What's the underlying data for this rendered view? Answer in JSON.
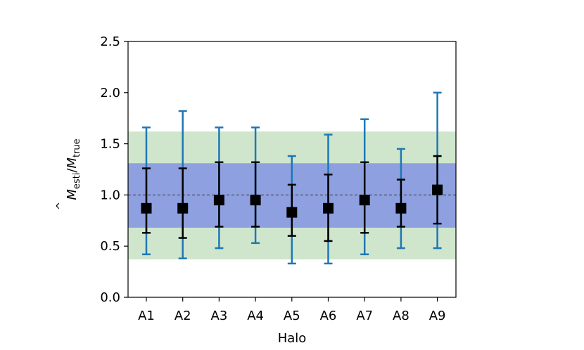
{
  "chart_data": {
    "type": "errorbar",
    "xlabel": "Halo",
    "ylabel_main": "M",
    "ylabel_sub_num": "esti",
    "ylabel_sep": "/",
    "ylabel_sub_den": "true",
    "ylim": [
      0.0,
      2.5
    ],
    "yticks": [
      "0.0",
      "0.5",
      "1.0",
      "1.5",
      "2.0",
      "2.5"
    ],
    "categories": [
      "A1",
      "A2",
      "A3",
      "A4",
      "A5",
      "A6",
      "A7",
      "A8",
      "A9"
    ],
    "values": [
      0.87,
      0.87,
      0.95,
      0.95,
      0.83,
      0.87,
      0.95,
      0.87,
      1.05
    ],
    "inner_error": {
      "lower": [
        0.63,
        0.58,
        0.69,
        0.69,
        0.6,
        0.55,
        0.63,
        0.69,
        0.72
      ],
      "upper": [
        1.26,
        1.26,
        1.32,
        1.32,
        1.1,
        1.2,
        1.32,
        1.15,
        1.38
      ]
    },
    "outer_error": {
      "lower": [
        0.42,
        0.38,
        0.48,
        0.53,
        0.33,
        0.33,
        0.42,
        0.48,
        0.48
      ],
      "upper": [
        1.66,
        1.82,
        1.66,
        1.66,
        1.38,
        1.59,
        1.74,
        1.45,
        2.0
      ]
    },
    "bands": [
      {
        "lower": 0.37,
        "upper": 1.62,
        "color": "#cfe6cd"
      },
      {
        "lower": 0.68,
        "upper": 1.31,
        "color": "#8fa0e0"
      }
    ],
    "reference_line": 1.0,
    "colors": {
      "outer": "#1f77b4",
      "inner": "#000000",
      "marker": "#000000"
    },
    "grid": false,
    "legend": "none"
  }
}
